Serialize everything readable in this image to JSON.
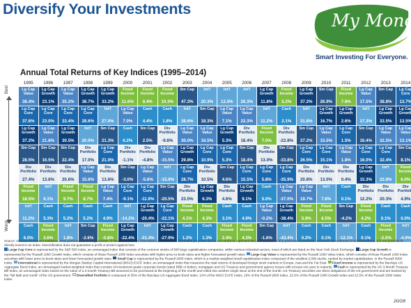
{
  "title": "Diversify Your Investments",
  "subtitle": "Annual Total Returns of Key Indices (1995–2014)",
  "logo": {
    "word": "My Money",
    "tagline": "Smart Investing For Everyone."
  },
  "axis": {
    "top": "Best",
    "bottom": "Worst"
  },
  "colors": {
    "Lg Cap Value": "#4a86c5",
    "Lg Cap Core": "#1b68ae",
    "Lg Cap Growth": "#0d3f78",
    "Sm Cap": "#2a5789",
    "Int'l": "#5fa7d9",
    "Fixed Income": "#7fbf3f",
    "Cash": "#2c8ecb",
    "Div Portfolio": "#e9eef3"
  },
  "years": [
    "1995",
    "1996",
    "1997",
    "1998",
    "1999",
    "2000",
    "2001",
    "2002",
    "2003",
    "2004",
    "2005",
    "2006",
    "2007",
    "2008",
    "2009",
    "2010",
    "2011",
    "2012",
    "2013",
    "2014"
  ],
  "columns": [
    [
      [
        "Lg Cap Value",
        "38.4%"
      ],
      [
        "Lg Cap Core",
        "37.6%"
      ],
      [
        "Lg Cap Growth",
        "37.2%"
      ],
      [
        "Sm Cap",
        "28.5%"
      ],
      [
        "Div Portfolio",
        "27.4%"
      ],
      [
        "Fixed Income",
        "18.5%"
      ],
      [
        "Int'l",
        "11.2%"
      ],
      [
        "Cash",
        "6.0%"
      ]
    ],
    [
      [
        "Lg Cap Growth",
        "23.1%"
      ],
      [
        "Lg Cap Core",
        "23.0%"
      ],
      [
        "Lg Cap Value",
        "21.6%"
      ],
      [
        "Sm Cap",
        "16.5%"
      ],
      [
        "Div Portfolio",
        "13.6%"
      ],
      [
        "Int'l",
        "6.1%"
      ],
      [
        "Cash",
        "5.3%"
      ],
      [
        "Fixed Income",
        "3.6%"
      ]
    ],
    [
      [
        "Lg Cap Value",
        "35.2%"
      ],
      [
        "Lg Cap Core",
        "33.4%"
      ],
      [
        "Lg Cap Growth",
        "30.5%"
      ],
      [
        "Sm Cap",
        "22.4%"
      ],
      [
        "Div Portfolio",
        "20.6%"
      ],
      [
        "Fixed Income",
        "9.7%"
      ],
      [
        "Cash",
        "5.2%"
      ],
      [
        "Int'l",
        "1.8%"
      ]
    ],
    [
      [
        "Lg Cap Growth",
        "38.7%"
      ],
      [
        "Lg Cap Core",
        "28.6%"
      ],
      [
        "Int'l",
        "20.0%"
      ],
      [
        "Div Portfolio",
        "17.0%"
      ],
      [
        "Lg Cap Value",
        "15.6%"
      ],
      [
        "Fixed Income",
        "8.7%"
      ],
      [
        "Cash",
        "5.2%"
      ],
      [
        "Sm Cap",
        "-2.6%"
      ]
    ],
    [
      [
        "Lg Cap Growth",
        "33.2%"
      ],
      [
        "Int'l",
        "27.0%"
      ],
      [
        "Sm Cap",
        "21.3%"
      ],
      [
        "Lg Cap Core",
        "21.0%"
      ],
      [
        "Div Portfolio",
        "13.6%"
      ],
      [
        "Lg Cap Value",
        "7.4%"
      ],
      [
        "Cash",
        "4.9%"
      ],
      [
        "Fixed Income",
        "-0.8%"
      ]
    ],
    [
      [
        "Fixed Income",
        "11.6%"
      ],
      [
        "Lg Cap Value",
        "7.0%"
      ],
      [
        "Cash",
        "6.2%"
      ],
      [
        "Div Portfolio",
        "-1.1%"
      ],
      [
        "Sm Cap",
        "-3.0%"
      ],
      [
        "Lg Cap Core",
        "-9.1%"
      ],
      [
        "Int'l",
        "-14.2%"
      ],
      [
        "Lg Cap Growth",
        "-22.4%"
      ]
    ],
    [
      [
        "Fixed Income",
        "8.4%"
      ],
      [
        "Cash",
        "4.4%"
      ],
      [
        "Sm Cap",
        "2.5%"
      ],
      [
        "Div Portfolio",
        "-4.8%"
      ],
      [
        "Lg Cap Value",
        "-5.6%"
      ],
      [
        "Lg Cap Core",
        "-11.9%"
      ],
      [
        "Lg Cap Growth",
        "-20.4%"
      ],
      [
        "Int'l",
        "-21.4%"
      ]
    ],
    [
      [
        "Fixed Income",
        "10.3%"
      ],
      [
        "Cash",
        "1.8%"
      ],
      [
        "Div Portfolio",
        "-9.8%"
      ],
      [
        "Lg Cap Value",
        "-15.5%"
      ],
      [
        "Int'l",
        "-15.9%"
      ],
      [
        "Sm Cap",
        "-20.5%"
      ],
      [
        "Lg Cap Core",
        "-22.1%"
      ],
      [
        "Lg Cap Growth",
        "-27.9%"
      ]
    ],
    [
      [
        "Sm Cap",
        "47.3%"
      ],
      [
        "Int'l",
        "38.6%"
      ],
      [
        "Lg Cap Value",
        "30.0%"
      ],
      [
        "Lg Cap Growth",
        "29.8%"
      ],
      [
        "Lg Cap Core",
        "28.7%"
      ],
      [
        "Div Portfolio",
        "23.5%"
      ],
      [
        "Fixed Income",
        "4.1%"
      ],
      [
        "Cash",
        "1.2%"
      ]
    ],
    [
      [
        "Int'l",
        "20.3%"
      ],
      [
        "Sm Cap",
        "18.3%"
      ],
      [
        "Lg Cap Value",
        "16.5%"
      ],
      [
        "Lg Cap Core",
        "10.9%"
      ],
      [
        "Div Portfolio",
        "10.5%"
      ],
      [
        "Lg Cap Growth",
        "6.3%"
      ],
      [
        "Fixed Income",
        "4.3%"
      ],
      [
        "Cash",
        "1.3%"
      ]
    ],
    [
      [
        "Int'l",
        "13.5%"
      ],
      [
        "Lg Cap Value",
        "7.1%"
      ],
      [
        "Lg Cap Growth",
        "5.3%"
      ],
      [
        "Lg Cap Core",
        "5.3%"
      ],
      [
        "Sm Cap",
        "4.6%"
      ],
      [
        "Div Portfolio",
        "4.6%"
      ],
      [
        "Cash",
        "3.1%"
      ],
      [
        "Fixed Income",
        "2.4%"
      ]
    ],
    [
      [
        "Int'l",
        "26.3%"
      ],
      [
        "Lg Cap Value",
        "22.3%"
      ],
      [
        "Div Portfolio",
        "18.4%"
      ],
      [
        "Sm Cap",
        "18.4%"
      ],
      [
        "Lg Cap Core",
        "15.5%"
      ],
      [
        "Lg Cap Growth",
        "9.1%"
      ],
      [
        "Cash",
        "4.9%"
      ],
      [
        "Fixed Income",
        "4.3%"
      ]
    ],
    [
      [
        "Lg Cap Growth",
        "11.8%"
      ],
      [
        "Int'l",
        "11.2%"
      ],
      [
        "Fixed Income",
        "7.0%"
      ],
      [
        "Div Portfolio",
        "13.0%"
      ],
      [
        "Lg Cap Core",
        "5.8%"
      ],
      [
        "Cash",
        "5.0%"
      ],
      [
        "Lg Cap Value",
        "-0.2%"
      ],
      [
        "Sm Cap",
        "-1.6%"
      ]
    ],
    [
      [
        "Fixed Income",
        "5.2%"
      ],
      [
        "Cash",
        "2.1%"
      ],
      [
        "Div Portfolio",
        "-22.8%"
      ],
      [
        "Sm Cap",
        "-33.8%"
      ],
      [
        "Lg Cap Core",
        "-35.9%"
      ],
      [
        "Lg Cap Value",
        "-37.0%"
      ],
      [
        "Lg Cap Growth",
        "-38.4%"
      ],
      [
        "Int'l",
        "-43.4%"
      ]
    ],
    [
      [
        "Lg Cap Growth",
        "37.2%"
      ],
      [
        "Int'l",
        "31.8%"
      ],
      [
        "Sm Cap",
        "27.2%"
      ],
      [
        "Lg Cap Core",
        "26.5%"
      ],
      [
        "Div Portfolio",
        "20.8%"
      ],
      [
        "Lg Cap Value",
        "19.7%"
      ],
      [
        "Fixed Income",
        "5.9%"
      ],
      [
        "Cash",
        "0.2%"
      ]
    ],
    [
      [
        "Sm Cap",
        "26.9%"
      ],
      [
        "Lg Cap Growth",
        "16.7%"
      ],
      [
        "Lg Cap Value",
        "15.5%"
      ],
      [
        "Lg Cap Core",
        "15.1%"
      ],
      [
        "Div Portfolio",
        "13.0%"
      ],
      [
        "Int'l",
        "7.8%"
      ],
      [
        "Fixed Income",
        "6.5%"
      ],
      [
        "Cash",
        "0.1%"
      ]
    ],
    [
      [
        "Fixed Income",
        "7.8%"
      ],
      [
        "Lg Cap Growth",
        "2.6%"
      ],
      [
        "Lg Cap Core",
        "1.5%"
      ],
      [
        "Lg Cap Value",
        "1.8%"
      ],
      [
        "Div Portfolio",
        "0.4%"
      ],
      [
        "Cash",
        "0.1%"
      ],
      [
        "Sm Cap",
        "-4.2%"
      ],
      [
        "Int'l",
        "-12.1%"
      ]
    ],
    [
      [
        "Lg Cap Value",
        "17.5%"
      ],
      [
        "Int'l",
        "17.3%"
      ],
      [
        "Sm Cap",
        "16.4%"
      ],
      [
        "Lg Cap Core",
        "16.0%"
      ],
      [
        "Lg Cap Growth",
        "15.3%"
      ],
      [
        "Div Portfolio",
        "12.2%"
      ],
      [
        "Fixed Income",
        "4.2%"
      ],
      [
        "Cash",
        "0.1%"
      ]
    ],
    [
      [
        "Sm Cap",
        "38.8%"
      ],
      [
        "Lg Cap Growth",
        "33.5%"
      ],
      [
        "Lg Cap Value",
        "32.5%"
      ],
      [
        "Lg Cap Core",
        "32.4%"
      ],
      [
        "Int'l",
        "22.8%"
      ],
      [
        "Div Portfolio",
        "20.3%"
      ],
      [
        "Cash",
        "0.1%"
      ],
      [
        "Fixed Income",
        "-2.0%"
      ]
    ],
    [
      [
        "Lg Cap Core",
        "13.7%"
      ],
      [
        "Lg Cap Growth",
        "13.5%"
      ],
      [
        "Lg Cap Value",
        "13.1%"
      ],
      [
        "Sm Cap",
        "8.1%"
      ],
      [
        "Fixed Income",
        "6.0%"
      ],
      [
        "Div Portfolio",
        "4.9%"
      ],
      [
        "Cash",
        "0.0%"
      ],
      [
        "Int'l",
        "-4.9%"
      ]
    ]
  ],
  "footer": {
    "source": "Source: Informa Investment Solutions. Past performance is no guarantee of future results. The information provided is for illustrative purposes and is not meant to represent the performance of any particular investment. Assumes reinvestment of all distributions. It is not possible to directly invest in an index. Diversification does not guarantee a profit or protect against loss.",
    "legend": [
      {
        "key": "Lg Cap Core",
        "label": "Large Cap Core",
        "text": " is represented by the S&P 500 Index, an unmanaged index that consists of the common stocks of 500 large capitalization companies, within various industrial sectors, most of which are listed on the New York Stock Exchange."
      },
      {
        "key": "Lg Cap Growth",
        "label": "Large Cap Growth",
        "text": " is represented by the Russell 1000 Growth Index, which consists of those Russell 1000 Index securities with higher price-to-book ratios and higher forecasted growth rates."
      },
      {
        "key": "Lg Cap Value",
        "label": "Large Cap Value",
        "text": " is represented by the Russell 1000 Value Index, which consists of those Russell 1000 Index securities with lower price-to-book ratios and lower forecasted growth rates."
      },
      {
        "key": "Sm Cap",
        "label": "Small Cap",
        "text": " is represented by the Russell 2000 Index, which is a market-weighted small capitalization index composed of the smallest 2,000 stocks, ranked by market capitalization, in the Russell 3000 Index."
      },
      {
        "key": "Int'l",
        "label": "International",
        "text": " is represented by the Morgan Stanley Capital International (MSCI) EAFE Index, an unmanaged index that measures the total returns of developed foreign stock markets in Europe, Asia and the Far East."
      },
      {
        "key": "Fixed Income",
        "label": "Fixed Income",
        "text": " is represented by the Barclays US Aggregate Bond Index, an unmanaged market-weighted index that consists of investment-grade corporate bonds (rated BBB or better), mortgages and US Treasury and government agency issues with at least one year to maturity."
      },
      {
        "key": "Cash",
        "label": "Cash",
        "text": " is represented by the US 3-Month Treasury Bill Index, an unmanaged index based on the value of a 3-month Treasury Bill assumed to be purchased at the beginning of the month and rolled into another single issue at the end of the month. US Treasury securities are direct obligations of the US government and are backed by the \"full faith and credit\" of the US government."
      },
      {
        "key": "Div Portfolio",
        "label": "Diversified Portfolio",
        "text": " is composed of 35% of the Barclays US Aggregate Bond Index, 10% of the MSCI EAFE Index, 10% of the Russell 2000 Index, 22.5% of the Russell 1000 Growth Index and 22.5% of the Russell 1000 Value Index."
      }
    ],
    "page": "20/28"
  }
}
